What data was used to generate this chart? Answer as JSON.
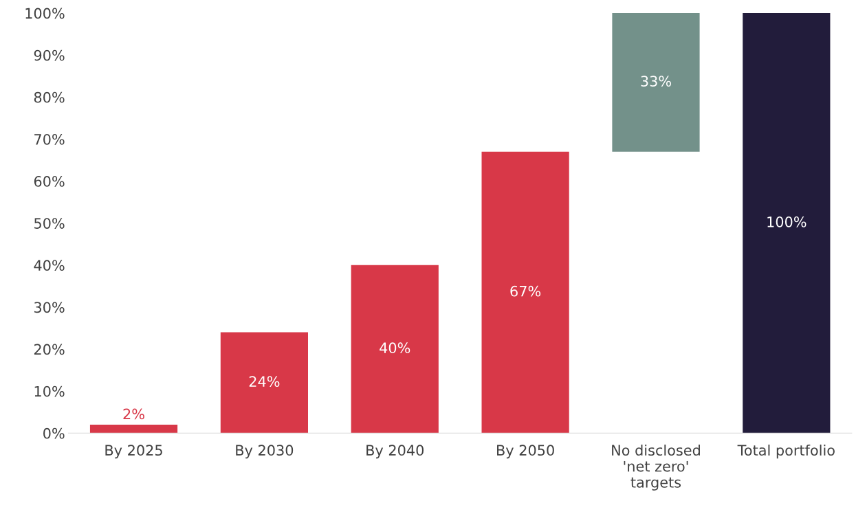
{
  "chart_data": {
    "type": "bar",
    "categories": [
      "By 2025",
      "By 2030",
      "By 2040",
      "By 2050",
      "No disclosed\n'net zero'\ntargets",
      "Total portfolio"
    ],
    "values": [
      2,
      24,
      40,
      67,
      33,
      100
    ],
    "base": [
      0,
      0,
      0,
      0,
      67,
      0
    ],
    "colors": [
      "#d83848",
      "#d83848",
      "#d83848",
      "#d83848",
      "#73918a",
      "#221c3b"
    ],
    "value_labels": [
      "2%",
      "24%",
      "40%",
      "67%",
      "33%",
      "100%"
    ],
    "ylim": [
      0,
      100
    ],
    "yticks": [
      {
        "value": 0,
        "label": "0%"
      },
      {
        "value": 10,
        "label": "10%"
      },
      {
        "value": 20,
        "label": "20%"
      },
      {
        "value": 30,
        "label": "30%"
      },
      {
        "value": 40,
        "label": "40%"
      },
      {
        "value": 50,
        "label": "50%"
      },
      {
        "value": 60,
        "label": "60%"
      },
      {
        "value": 70,
        "label": "70%"
      },
      {
        "value": 80,
        "label": "80%"
      },
      {
        "value": 90,
        "label": "90%"
      },
      {
        "value": 100,
        "label": "100%"
      }
    ],
    "grid": false,
    "legend": false
  }
}
